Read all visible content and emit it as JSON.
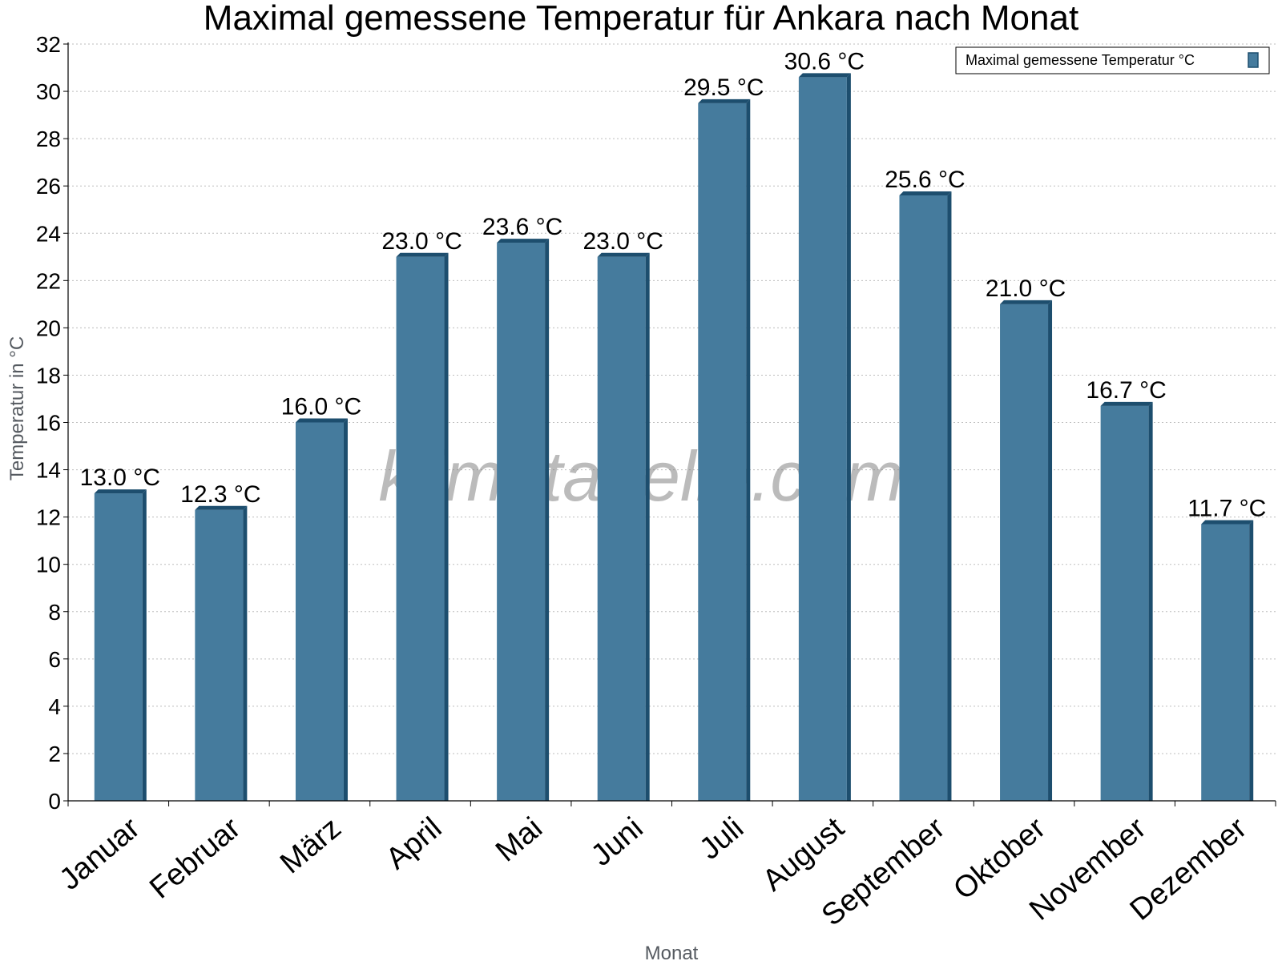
{
  "chart_data": {
    "type": "bar",
    "title": "Maximal gemessene Temperatur für Ankara nach Monat",
    "xlabel": "Monat",
    "ylabel": "Temperatur in °C",
    "ylim": [
      0,
      32
    ],
    "ytick_step": 2,
    "grid": true,
    "legend_position": "top-right",
    "categories": [
      "Januar",
      "Februar",
      "März",
      "April",
      "Mai",
      "Juni",
      "Juli",
      "August",
      "September",
      "Oktober",
      "November",
      "Dezember"
    ],
    "series": [
      {
        "name": "Maximal gemessene Temperatur °C",
        "values": [
          13.0,
          12.3,
          16.0,
          23.0,
          23.6,
          23.0,
          29.5,
          30.6,
          25.6,
          21.0,
          16.7,
          11.7
        ],
        "value_labels": [
          "13.0 °C",
          "12.3 °C",
          "16.0 °C",
          "23.0 °C",
          "23.6 °C",
          "23.0 °C",
          "29.5 °C",
          "30.6 °C",
          "25.6 °C",
          "21.0 °C",
          "16.7 °C",
          "11.7 °C"
        ],
        "color": "#457b9d",
        "edge_color": "#1d4e6e"
      }
    ],
    "watermark": "klimatabelle.com"
  }
}
